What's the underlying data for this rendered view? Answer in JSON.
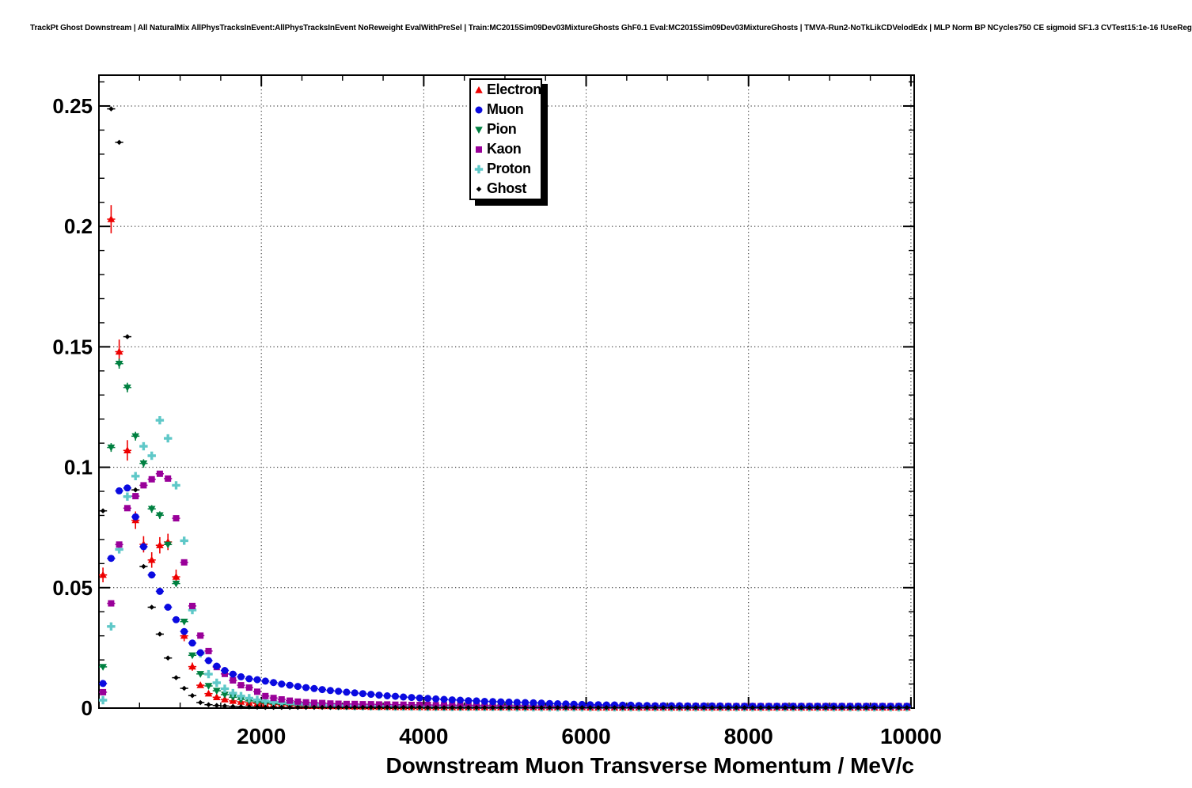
{
  "chart_data": {
    "type": "scatter",
    "title": "TrackPt Ghost Downstream | All NaturalMix AllPhysTracksInEvent:AllPhysTracksInEvent NoReweight EvalWithPreSel | Train:MC2015Sim09Dev03MixtureGhosts GhF0.1 Eval:MC2015Sim09Dev03MixtureGhosts | TMVA-Run2-NoTkLikCDVelodEdx | MLP Norm BP NCycles750 CE sigmoid SF1.3 CVTest15:1e-16 !UseReg",
    "xlabel": "Downstream Muon Transverse Momentum / MeV/c",
    "ylabel": "",
    "xlim": [
      0,
      10040
    ],
    "ylim": [
      0,
      0.2628
    ],
    "x_major_ticks": [
      2000,
      4000,
      6000,
      8000,
      10000
    ],
    "x_tick_labels": [
      "2000",
      "4000",
      "6000",
      "8000",
      "10000"
    ],
    "x_minor_step": 500,
    "y_major_ticks": [
      0,
      0.05,
      0.1,
      0.15,
      0.2,
      0.25
    ],
    "y_tick_labels": [
      "0",
      "0.05",
      "0.1",
      "0.15",
      "0.2",
      "0.25"
    ],
    "y_minor_step": 0.01,
    "grid": "dotted-at-major-ticks",
    "legend_position": "top-center",
    "bin_start": 50,
    "bin_width": 100,
    "n_bins": 100,
    "series": [
      {
        "name": "electron",
        "label": "Electron",
        "color": "#ee0000",
        "marker": "triangle-up",
        "yerr_coeff": 0.013,
        "values": [
          0.0553,
          0.203,
          0.148,
          0.107,
          0.078,
          0.068,
          0.0615,
          0.0676,
          0.069,
          0.0545,
          0.03,
          0.0172,
          0.0095,
          0.006,
          0.0045,
          0.0036,
          0.003,
          0.0026,
          0.0022,
          0.0019,
          0.0017,
          0.0015,
          0.0013,
          0.0012,
          0.0011,
          0.001,
          0.0009,
          0.0008,
          0.0008,
          0.0007,
          0.0007,
          0.0006,
          0.0006,
          0.0005,
          0.0005,
          0.0005,
          0.0004,
          0.0004,
          0.0004,
          0.0004,
          0.0003,
          0.0003,
          0.0003,
          0.0003,
          0.0003,
          0.0003,
          0.0003,
          0.0003,
          0.0003,
          0.0003,
          0.0003,
          0.0003,
          0.0003,
          0.0003,
          0.0003,
          0.0003,
          0.0003,
          0.0003,
          0.0003,
          0.0003,
          0.0002,
          0.0002,
          0.0002,
          0.0002,
          0.0002,
          0.0002,
          0.0002,
          0.0002,
          0.0002,
          0.0002,
          0.0002,
          0.0002,
          0.0002,
          0.0002,
          0.0002,
          0.0002,
          0.0002,
          0.0002,
          0.0002,
          0.0002,
          0.0002,
          0.0002,
          0.0002,
          0.0002,
          0.0002,
          0.0002,
          0.0002,
          0.0002,
          0.0002,
          0.0002,
          0.0002,
          0.0002,
          0.0002,
          0.0002,
          0.0002,
          0.0002,
          0.0002,
          0.0002,
          0.0002,
          0.0002
        ]
      },
      {
        "name": "pion",
        "label": "Pion",
        "color": "#008040",
        "marker": "triangle-down",
        "yerr_coeff": 0.0055,
        "values": [
          0.0171,
          0.1082,
          0.143,
          0.1331,
          0.1129,
          0.1016,
          0.0827,
          0.0801,
          0.0679,
          0.0517,
          0.0359,
          0.0219,
          0.0142,
          0.0092,
          0.0072,
          0.0056,
          0.0045,
          0.0036,
          0.003,
          0.0025,
          0.0021,
          0.0018,
          0.0016,
          0.0014,
          0.0012,
          0.0011,
          0.001,
          0.0009,
          0.0008,
          0.0007,
          0.0007,
          0.0006,
          0.0006,
          0.0005,
          0.0005,
          0.0005,
          0.0004,
          0.0004,
          0.0004,
          0.0004,
          0.0003,
          0.0003,
          0.0003,
          0.0003,
          0.0003,
          0.0003,
          0.0003,
          0.0003,
          0.0003,
          0.0003,
          0.0003,
          0.0003,
          0.0003,
          0.0003,
          0.0003,
          0.0003,
          0.0003,
          0.0003,
          0.0003,
          0.0003,
          0.0002,
          0.0002,
          0.0002,
          0.0002,
          0.0002,
          0.0002,
          0.0002,
          0.0002,
          0.0002,
          0.0002,
          0.0002,
          0.0002,
          0.0002,
          0.0002,
          0.0002,
          0.0002,
          0.0002,
          0.0002,
          0.0002,
          0.0002,
          0.0002,
          0.0002,
          0.0002,
          0.0002,
          0.0002,
          0.0002,
          0.0002,
          0.0002,
          0.0002,
          0.0002,
          0.0002,
          0.0002,
          0.0002,
          0.0002,
          0.0002,
          0.0002,
          0.0002,
          0.0002,
          0.0002,
          0.0002
        ]
      },
      {
        "name": "proton",
        "label": "Proton",
        "color": "#5fc8c8",
        "marker": "plus",
        "yerr_coeff": 0.004,
        "values": [
          0.0033,
          0.0339,
          0.0659,
          0.0878,
          0.0963,
          0.1087,
          0.1048,
          0.1195,
          0.112,
          0.0925,
          0.0695,
          0.0407,
          0.0227,
          0.0141,
          0.0105,
          0.008,
          0.0062,
          0.005,
          0.0041,
          0.0034,
          0.0029,
          0.0025,
          0.0022,
          0.0019,
          0.0017,
          0.0015,
          0.0014,
          0.0012,
          0.0011,
          0.001,
          0.001,
          0.0009,
          0.0008,
          0.0008,
          0.0007,
          0.0007,
          0.0006,
          0.0006,
          0.0006,
          0.0005,
          0.0005,
          0.0005,
          0.0004,
          0.0004,
          0.0004,
          0.0004,
          0.0004,
          0.0004,
          0.0004,
          0.0004,
          0.0003,
          0.0003,
          0.0003,
          0.0003,
          0.0003,
          0.0003,
          0.0003,
          0.0003,
          0.0003,
          0.0003,
          0.0003,
          0.0003,
          0.0003,
          0.0003,
          0.0003,
          0.0003,
          0.0003,
          0.0003,
          0.0003,
          0.0003,
          0.0003,
          0.0003,
          0.0003,
          0.0003,
          0.0003,
          0.0003,
          0.0003,
          0.0003,
          0.0003,
          0.0003,
          0.0003,
          0.0003,
          0.0003,
          0.0003,
          0.0003,
          0.0003,
          0.0003,
          0.0003,
          0.0003,
          0.0003,
          0.0003,
          0.0003,
          0.0003,
          0.0003,
          0.0003,
          0.0003,
          0.0003,
          0.0003,
          0.0003,
          0.0003
        ]
      },
      {
        "name": "kaon",
        "label": "Kaon",
        "color": "#990099",
        "marker": "square",
        "yerr_coeff": 0.003,
        "values": [
          0.0066,
          0.0435,
          0.0679,
          0.083,
          0.088,
          0.0925,
          0.095,
          0.0973,
          0.0953,
          0.0788,
          0.0605,
          0.0424,
          0.0301,
          0.0237,
          0.017,
          0.0142,
          0.0115,
          0.0095,
          0.0085,
          0.0068,
          0.005,
          0.0042,
          0.0036,
          0.0031,
          0.0027,
          0.0024,
          0.0022,
          0.0021,
          0.0019,
          0.0018,
          0.0017,
          0.0017,
          0.0016,
          0.0016,
          0.0015,
          0.0015,
          0.0014,
          0.0014,
          0.0013,
          0.0013,
          0.0013,
          0.0012,
          0.0012,
          0.0012,
          0.0011,
          0.0011,
          0.0011,
          0.0011,
          0.001,
          0.001,
          0.001,
          0.001,
          0.001,
          0.0009,
          0.0009,
          0.0009,
          0.0009,
          0.0009,
          0.0009,
          0.0009,
          0.0009,
          0.0009,
          0.0009,
          0.0009,
          0.0008,
          0.0008,
          0.0008,
          0.0008,
          0.0008,
          0.0008,
          0.0008,
          0.0008,
          0.0008,
          0.0008,
          0.0008,
          0.0008,
          0.0008,
          0.0008,
          0.0008,
          0.0008,
          0.0008,
          0.0008,
          0.0008,
          0.0008,
          0.0008,
          0.0008,
          0.0008,
          0.0008,
          0.0008,
          0.0008,
          0.0008,
          0.0008,
          0.0008,
          0.0008,
          0.0008,
          0.0008,
          0.0008,
          0.0008,
          0.0008,
          0.0008
        ]
      },
      {
        "name": "muon",
        "label": "Muon",
        "color": "#0a0ae0",
        "marker": "circle",
        "yerr_coeff": 0.0033,
        "values": [
          0.0102,
          0.0622,
          0.0902,
          0.0914,
          0.0794,
          0.067,
          0.0553,
          0.0485,
          0.0419,
          0.0367,
          0.0318,
          0.027,
          0.023,
          0.0197,
          0.0174,
          0.0156,
          0.0141,
          0.013,
          0.0122,
          0.0118,
          0.0112,
          0.0106,
          0.01,
          0.0095,
          0.009,
          0.0085,
          0.0081,
          0.0077,
          0.0073,
          0.007,
          0.0066,
          0.0063,
          0.006,
          0.0057,
          0.0054,
          0.0051,
          0.0049,
          0.0046,
          0.0044,
          0.0042,
          0.004,
          0.0038,
          0.0036,
          0.0034,
          0.0033,
          0.0031,
          0.003,
          0.0028,
          0.0027,
          0.0026,
          0.0025,
          0.0024,
          0.0023,
          0.0022,
          0.0021,
          0.0019,
          0.0018,
          0.0017,
          0.0016,
          0.0015,
          0.0014,
          0.0014,
          0.0013,
          0.0013,
          0.0012,
          0.0012,
          0.0011,
          0.0011,
          0.001,
          0.001,
          0.001,
          0.001,
          0.0009,
          0.0009,
          0.0009,
          0.0009,
          0.0009,
          0.0008,
          0.0008,
          0.0008,
          0.0008,
          0.0008,
          0.0008,
          0.0008,
          0.0008,
          0.0008,
          0.0008,
          0.0008,
          0.0008,
          0.0008,
          0.0008,
          0.0008,
          0.0008,
          0.0008,
          0.0008,
          0.0008,
          0.0008,
          0.0008,
          0.0008,
          0.0008
        ]
      },
      {
        "name": "ghost",
        "label": "Ghost",
        "color": "#000000",
        "marker": "diamond",
        "yerr_coeff": 0.0026,
        "values": [
          0.0819,
          0.2488,
          0.2349,
          0.1542,
          0.0906,
          0.0588,
          0.0419,
          0.0307,
          0.0208,
          0.0126,
          0.0082,
          0.0052,
          0.0023,
          0.0014,
          0.0011,
          0.0009,
          0.0007,
          0.0006,
          0.0005,
          0.0004,
          0.0003,
          0.0003,
          0.0003,
          0.0003,
          0.0003,
          0.0003,
          0.0003,
          0.0003,
          0.0003,
          0.0003,
          0.0003,
          0.0003,
          0.0003,
          0.0003,
          0.0003,
          0.0003,
          0.0003,
          0.0003,
          0.0003,
          0.0003,
          0.0002,
          0.0002,
          0.0002,
          0.0002,
          0.0002,
          0.0002,
          0.0002,
          0.0002,
          0.0002,
          0.0002,
          0.0002,
          0.0002,
          0.0002,
          0.0002,
          0.0002,
          0.0002,
          0.0002,
          0.0002,
          0.0002,
          0.0002,
          0.0002,
          0.0002,
          0.0002,
          0.0002,
          0.0002,
          0.0002,
          0.0002,
          0.0002,
          0.0002,
          0.0002,
          0.0002,
          0.0002,
          0.0002,
          0.0002,
          0.0002,
          0.0002,
          0.0002,
          0.0002,
          0.0002,
          0.0002,
          0.0002,
          0.0002,
          0.0002,
          0.0002,
          0.0002,
          0.0002,
          0.0002,
          0.0002,
          0.0002,
          0.0002,
          0.0002,
          0.0002,
          0.0002,
          0.0002,
          0.0002,
          0.0002,
          0.0002,
          0.0002,
          0.0002,
          0.0002
        ]
      }
    ],
    "legend_order": [
      "electron",
      "muon",
      "pion",
      "kaon",
      "proton",
      "ghost"
    ]
  },
  "layout_colors": {
    "frame": "#000000",
    "grid": "#222222",
    "background": "#ffffff"
  }
}
